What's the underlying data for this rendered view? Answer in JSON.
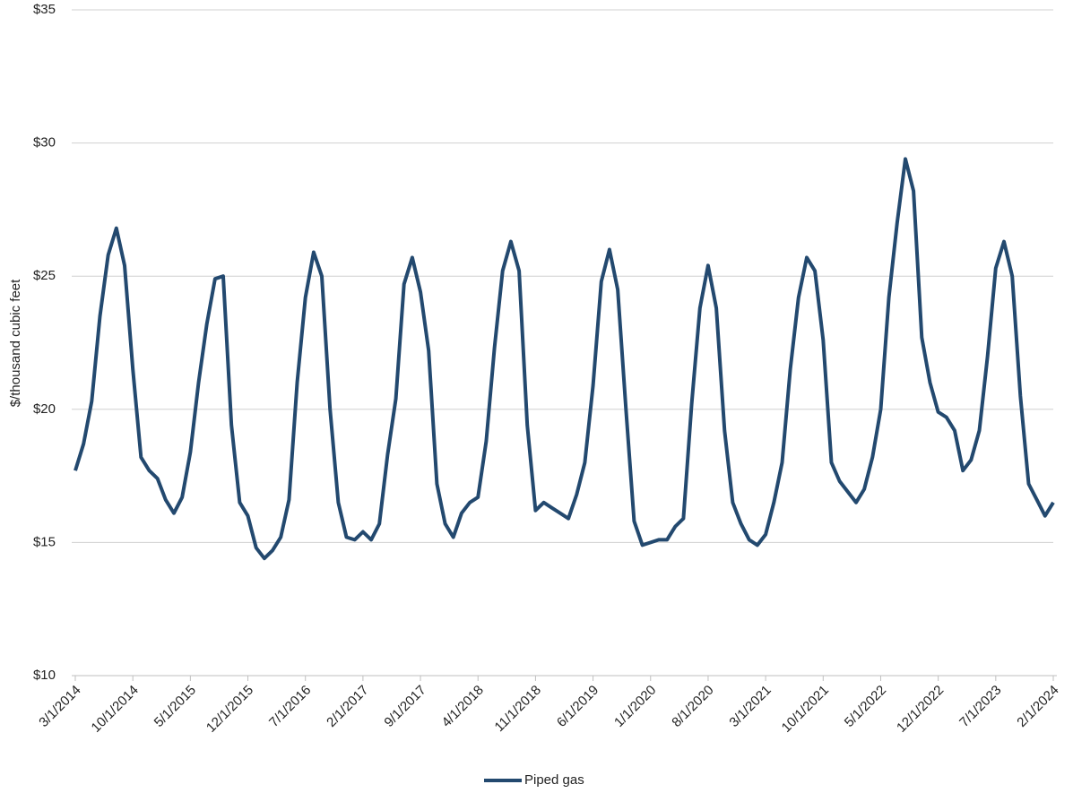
{
  "chart_data": {
    "type": "line",
    "y_label": "$/thousand cubic feet",
    "categories": [
      "3/1/2014",
      null,
      null,
      null,
      null,
      null,
      null,
      "10/1/2014",
      null,
      null,
      null,
      null,
      null,
      null,
      "5/1/2015",
      null,
      null,
      null,
      null,
      null,
      null,
      "12/1/2015",
      null,
      null,
      null,
      null,
      null,
      null,
      "7/1/2016",
      null,
      null,
      null,
      null,
      null,
      null,
      "2/1/2017",
      null,
      null,
      null,
      null,
      null,
      null,
      "9/1/2017",
      null,
      null,
      null,
      null,
      null,
      null,
      "4/1/2018",
      null,
      null,
      null,
      null,
      null,
      null,
      "11/1/2018",
      null,
      null,
      null,
      null,
      null,
      null,
      "6/1/2019",
      null,
      null,
      null,
      null,
      null,
      null,
      "1/1/2020",
      null,
      null,
      null,
      null,
      null,
      null,
      "8/1/2020",
      null,
      null,
      null,
      null,
      null,
      null,
      "3/1/2021",
      null,
      null,
      null,
      null,
      null,
      null,
      "10/1/2021",
      null,
      null,
      null,
      null,
      null,
      null,
      "5/1/2022",
      null,
      null,
      null,
      null,
      null,
      null,
      "12/1/2022",
      null,
      null,
      null,
      null,
      null,
      null,
      "7/1/2023",
      null,
      null,
      null,
      null,
      null,
      null,
      "2/1/2024"
    ],
    "series": [
      {
        "name": "Piped gas",
        "color": "#23496f",
        "values": [
          17.7,
          18.7,
          20.3,
          23.5,
          25.8,
          26.8,
          25.4,
          21.5,
          18.2,
          17.7,
          17.4,
          16.6,
          16.1,
          16.7,
          18.4,
          21.0,
          23.2,
          24.9,
          25.0,
          19.4,
          16.5,
          16.0,
          14.8,
          14.4,
          14.7,
          15.2,
          16.6,
          21.0,
          24.2,
          25.9,
          25.0,
          20.0,
          16.5,
          15.2,
          15.1,
          15.4,
          15.1,
          15.7,
          18.3,
          20.4,
          24.7,
          25.7,
          24.4,
          22.2,
          17.2,
          15.7,
          15.2,
          16.1,
          16.5,
          16.7,
          18.8,
          22.3,
          25.2,
          26.3,
          25.2,
          19.4,
          16.2,
          16.5,
          16.3,
          16.1,
          15.9,
          16.8,
          18.0,
          20.9,
          24.8,
          26.0,
          24.5,
          20.0,
          15.8,
          14.9,
          15.0,
          15.1,
          15.1,
          15.6,
          15.9,
          20.2,
          23.8,
          25.4,
          23.8,
          19.2,
          16.5,
          15.7,
          15.1,
          14.9,
          15.3,
          16.5,
          18.0,
          21.5,
          24.2,
          25.7,
          25.2,
          22.6,
          18.0,
          17.3,
          16.9,
          16.5,
          17.0,
          18.2,
          20.0,
          24.2,
          27.0,
          29.4,
          28.2,
          22.7,
          21.0,
          19.9,
          19.7,
          19.2,
          17.7,
          18.1,
          19.2,
          22.0,
          25.3,
          26.3,
          25.0,
          20.5,
          17.2,
          16.6,
          16.0,
          16.5
        ]
      }
    ],
    "ylim": [
      10,
      35
    ],
    "yticks": [
      {
        "value": 10,
        "label": "$10"
      },
      {
        "value": 15,
        "label": "$15"
      },
      {
        "value": 20,
        "label": "$20"
      },
      {
        "value": 25,
        "label": "$25"
      },
      {
        "value": 30,
        "label": "$30"
      },
      {
        "value": 35,
        "label": "$35"
      }
    ],
    "grid": true,
    "legend": "bottom"
  }
}
